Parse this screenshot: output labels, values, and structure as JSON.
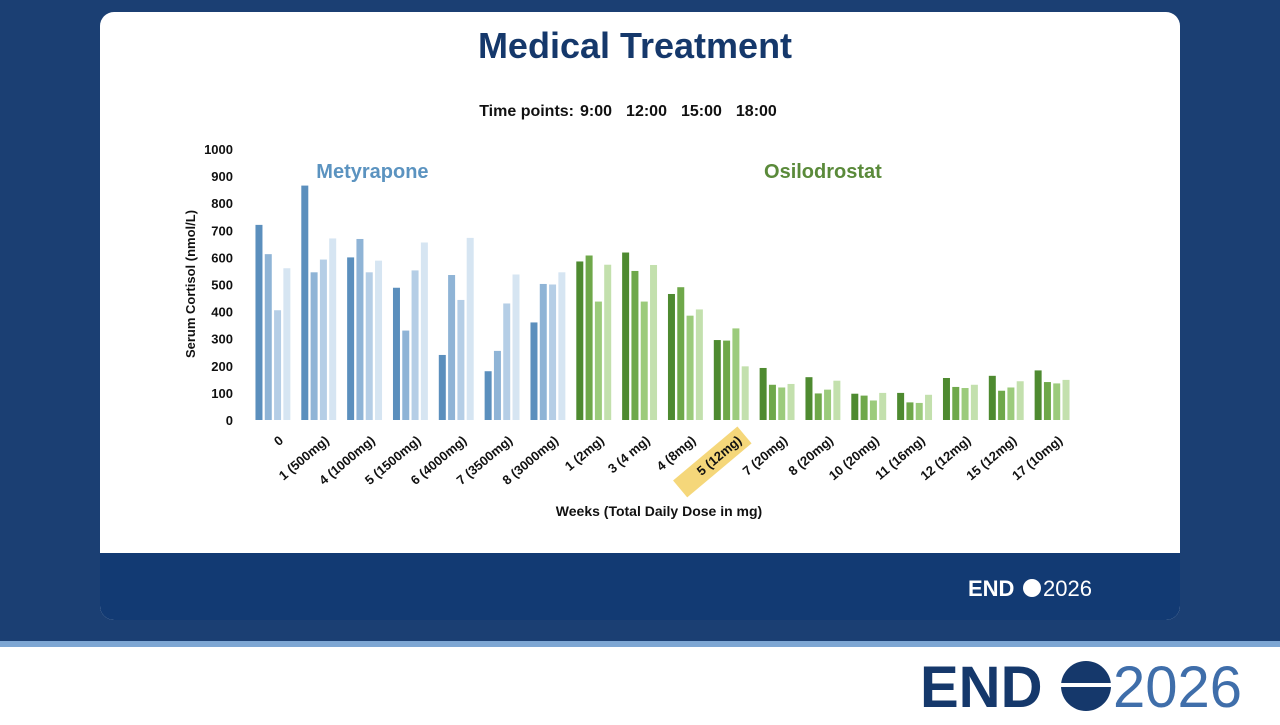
{
  "chart_data": {
    "type": "bar",
    "title": "Medical Treatment",
    "subtitle_label": "Time points:",
    "time_points": [
      "9:00",
      "12:00",
      "15:00",
      "18:00"
    ],
    "y_label": "Serum Cortisol (nmol/L)",
    "x_label": "Weeks (Total Daily Dose in mg)",
    "ylim": [
      0,
      1000
    ],
    "yticks": [
      0,
      100,
      200,
      300,
      400,
      500,
      600,
      700,
      800,
      900,
      1000
    ],
    "groups": [
      {
        "name": "Metyrapone",
        "label_color": "#5b93c0",
        "categories": [
          "0",
          "1 (500mg)",
          "4 (1000mg)",
          "5 (1500mg)",
          "6 (4000mg)",
          "7 (3500mg)",
          "8 (3000mg)"
        ],
        "series": [
          {
            "color": "#5b8fbd",
            "values": [
              720,
              865,
              600,
              488,
              240,
              180,
              360
            ]
          },
          {
            "color": "#8fb4d6",
            "values": [
              612,
              545,
              668,
              330,
              535,
              255,
              502
            ]
          },
          {
            "color": "#b5cee6",
            "values": [
              405,
              592,
              545,
              552,
              443,
              430,
              500
            ]
          },
          {
            "color": "#d6e5f2",
            "values": [
              560,
              670,
              588,
              655,
              672,
              537,
              545
            ]
          }
        ]
      },
      {
        "name": "Osilodrostat",
        "label_color": "#5a8a3a",
        "categories": [
          "1 (2mg)",
          "3 (4 mg)",
          "4 (8mg)",
          "5 (12mg)",
          "7 (20mg)",
          "8 (20mg)",
          "10 (20mg)",
          "11 (16mg)",
          "12 (12mg)",
          "15 (12mg)",
          "17 (10mg)"
        ],
        "highlight": {
          "index": 3,
          "color": "#f5d77a"
        },
        "series": [
          {
            "color": "#4e8a30",
            "values": [
              585,
              618,
              465,
              295,
              192,
              158,
              97,
              100,
              155,
              163,
              183
            ]
          },
          {
            "color": "#6fa84a",
            "values": [
              607,
              550,
              490,
              293,
              130,
              98,
              90,
              65,
              122,
              108,
              140
            ]
          },
          {
            "color": "#9ccb7c",
            "values": [
              437,
              437,
              385,
              338,
              120,
              112,
              72,
              63,
              118,
              120,
              135
            ]
          },
          {
            "color": "#c3e0ad",
            "values": [
              573,
              572,
              408,
              198,
              133,
              145,
              100,
              93,
              130,
              143,
              148
            ]
          }
        ]
      }
    ]
  },
  "footer": {
    "logo_text": "END",
    "logo_year": "2026"
  }
}
